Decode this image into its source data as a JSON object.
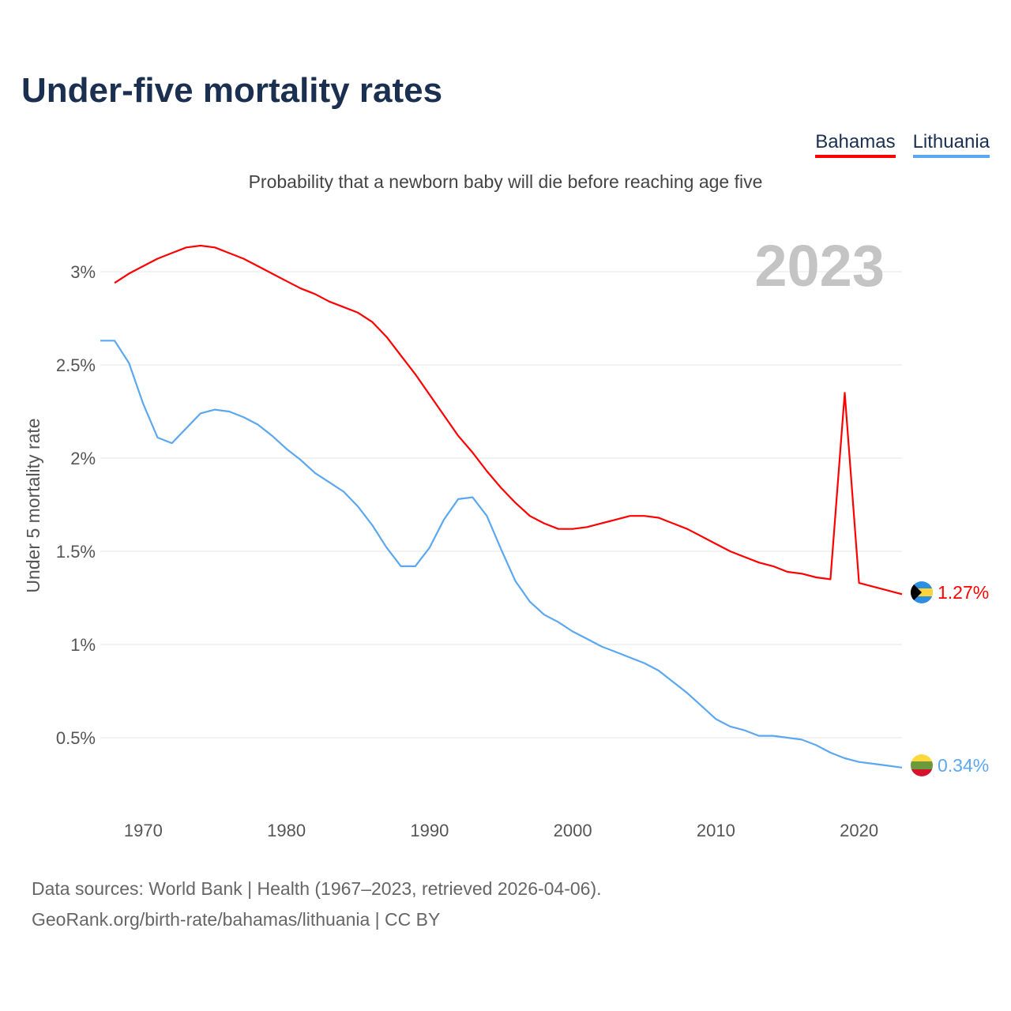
{
  "title": "Under-five mortality rates",
  "subtitle": "Probability that a newborn baby will die before reaching age five",
  "footer": {
    "line1": "Data sources: World Bank | Health (1967–2023, retrieved 2026-04-06).",
    "line2": "GeoRank.org/birth-rate/bahamas/lithuania | CC BY"
  },
  "chart_data": {
    "type": "line",
    "title": "Under-five mortality rates",
    "ylabel": "Under 5 mortality rate",
    "xlabel": "",
    "year_label": "2023",
    "ylim": [
      0,
      3.3
    ],
    "xlim": [
      1967,
      2023
    ],
    "y_ticks": [
      0.5,
      1,
      1.5,
      2,
      2.5,
      3
    ],
    "y_tick_labels": [
      "0.5%",
      "1%",
      "1.5%",
      "2%",
      "2.5%",
      "3%"
    ],
    "x_ticks": [
      1970,
      1980,
      1990,
      2000,
      2010,
      2020
    ],
    "x_tick_labels": [
      "1970",
      "1980",
      "1990",
      "2000",
      "2010",
      "2020"
    ],
    "grid": true,
    "legend_position": "top-right",
    "series": [
      {
        "name": "Bahamas",
        "color": "#ff0000",
        "end_label": "1.27%",
        "start_year": 1968,
        "values": [
          2.94,
          2.99,
          3.03,
          3.07,
          3.1,
          3.13,
          3.14,
          3.13,
          3.1,
          3.07,
          3.03,
          2.99,
          2.95,
          2.91,
          2.88,
          2.84,
          2.81,
          2.78,
          2.73,
          2.65,
          2.55,
          2.45,
          2.34,
          2.23,
          2.12,
          2.03,
          1.93,
          1.84,
          1.76,
          1.69,
          1.65,
          1.62,
          1.62,
          1.63,
          1.65,
          1.67,
          1.69,
          1.69,
          1.68,
          1.65,
          1.62,
          1.58,
          1.54,
          1.5,
          1.47,
          1.44,
          1.42,
          1.39,
          1.38,
          1.36,
          1.35,
          2.35,
          1.33,
          1.31,
          1.29,
          1.27
        ]
      },
      {
        "name": "Lithuania",
        "color": "#5ba8f0",
        "end_label": "0.34%",
        "start_year": 1967,
        "values": [
          2.63,
          2.63,
          2.51,
          2.29,
          2.11,
          2.08,
          2.16,
          2.24,
          2.26,
          2.25,
          2.22,
          2.18,
          2.12,
          2.05,
          1.99,
          1.92,
          1.87,
          1.82,
          1.74,
          1.64,
          1.52,
          1.42,
          1.42,
          1.52,
          1.67,
          1.78,
          1.79,
          1.69,
          1.51,
          1.34,
          1.23,
          1.16,
          1.12,
          1.07,
          1.03,
          0.99,
          0.96,
          0.93,
          0.9,
          0.86,
          0.8,
          0.74,
          0.67,
          0.6,
          0.56,
          0.54,
          0.51,
          0.51,
          0.5,
          0.49,
          0.46,
          0.42,
          0.39,
          0.37,
          0.36,
          0.35,
          0.34
        ]
      }
    ]
  }
}
